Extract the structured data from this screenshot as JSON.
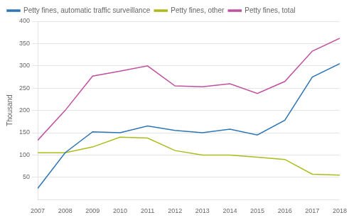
{
  "chart_data": {
    "type": "line",
    "y_label": "Thousand",
    "x": [
      2007,
      2008,
      2009,
      2010,
      2011,
      2012,
      2013,
      2014,
      2015,
      2016,
      2017,
      2018
    ],
    "series": [
      {
        "name": "Petty fines, automatic traffic surveillance",
        "color": "#2E75B6",
        "values": [
          25,
          105,
          152,
          150,
          165,
          155,
          150,
          158,
          145,
          178,
          275,
          305
        ]
      },
      {
        "name": "Petty fines, other",
        "color": "#ADBB18",
        "values": [
          105,
          105,
          118,
          140,
          138,
          110,
          100,
          100,
          95,
          90,
          57,
          55
        ]
      },
      {
        "name": "Petty fines, total",
        "color": "#C050A0",
        "values": [
          133,
          200,
          277,
          288,
          300,
          255,
          253,
          260,
          238,
          265,
          333,
          362
        ]
      }
    ],
    "xlim": [
      2007,
      2018
    ],
    "xticks": [
      2007,
      2008,
      2009,
      2010,
      2011,
      2012,
      2013,
      2014,
      2015,
      2016,
      2017,
      2018
    ],
    "ylim": [
      0,
      400
    ],
    "yticks": [
      50,
      100,
      150,
      200,
      250,
      300,
      350,
      400
    ],
    "grid": "y",
    "legend": "upper left"
  }
}
